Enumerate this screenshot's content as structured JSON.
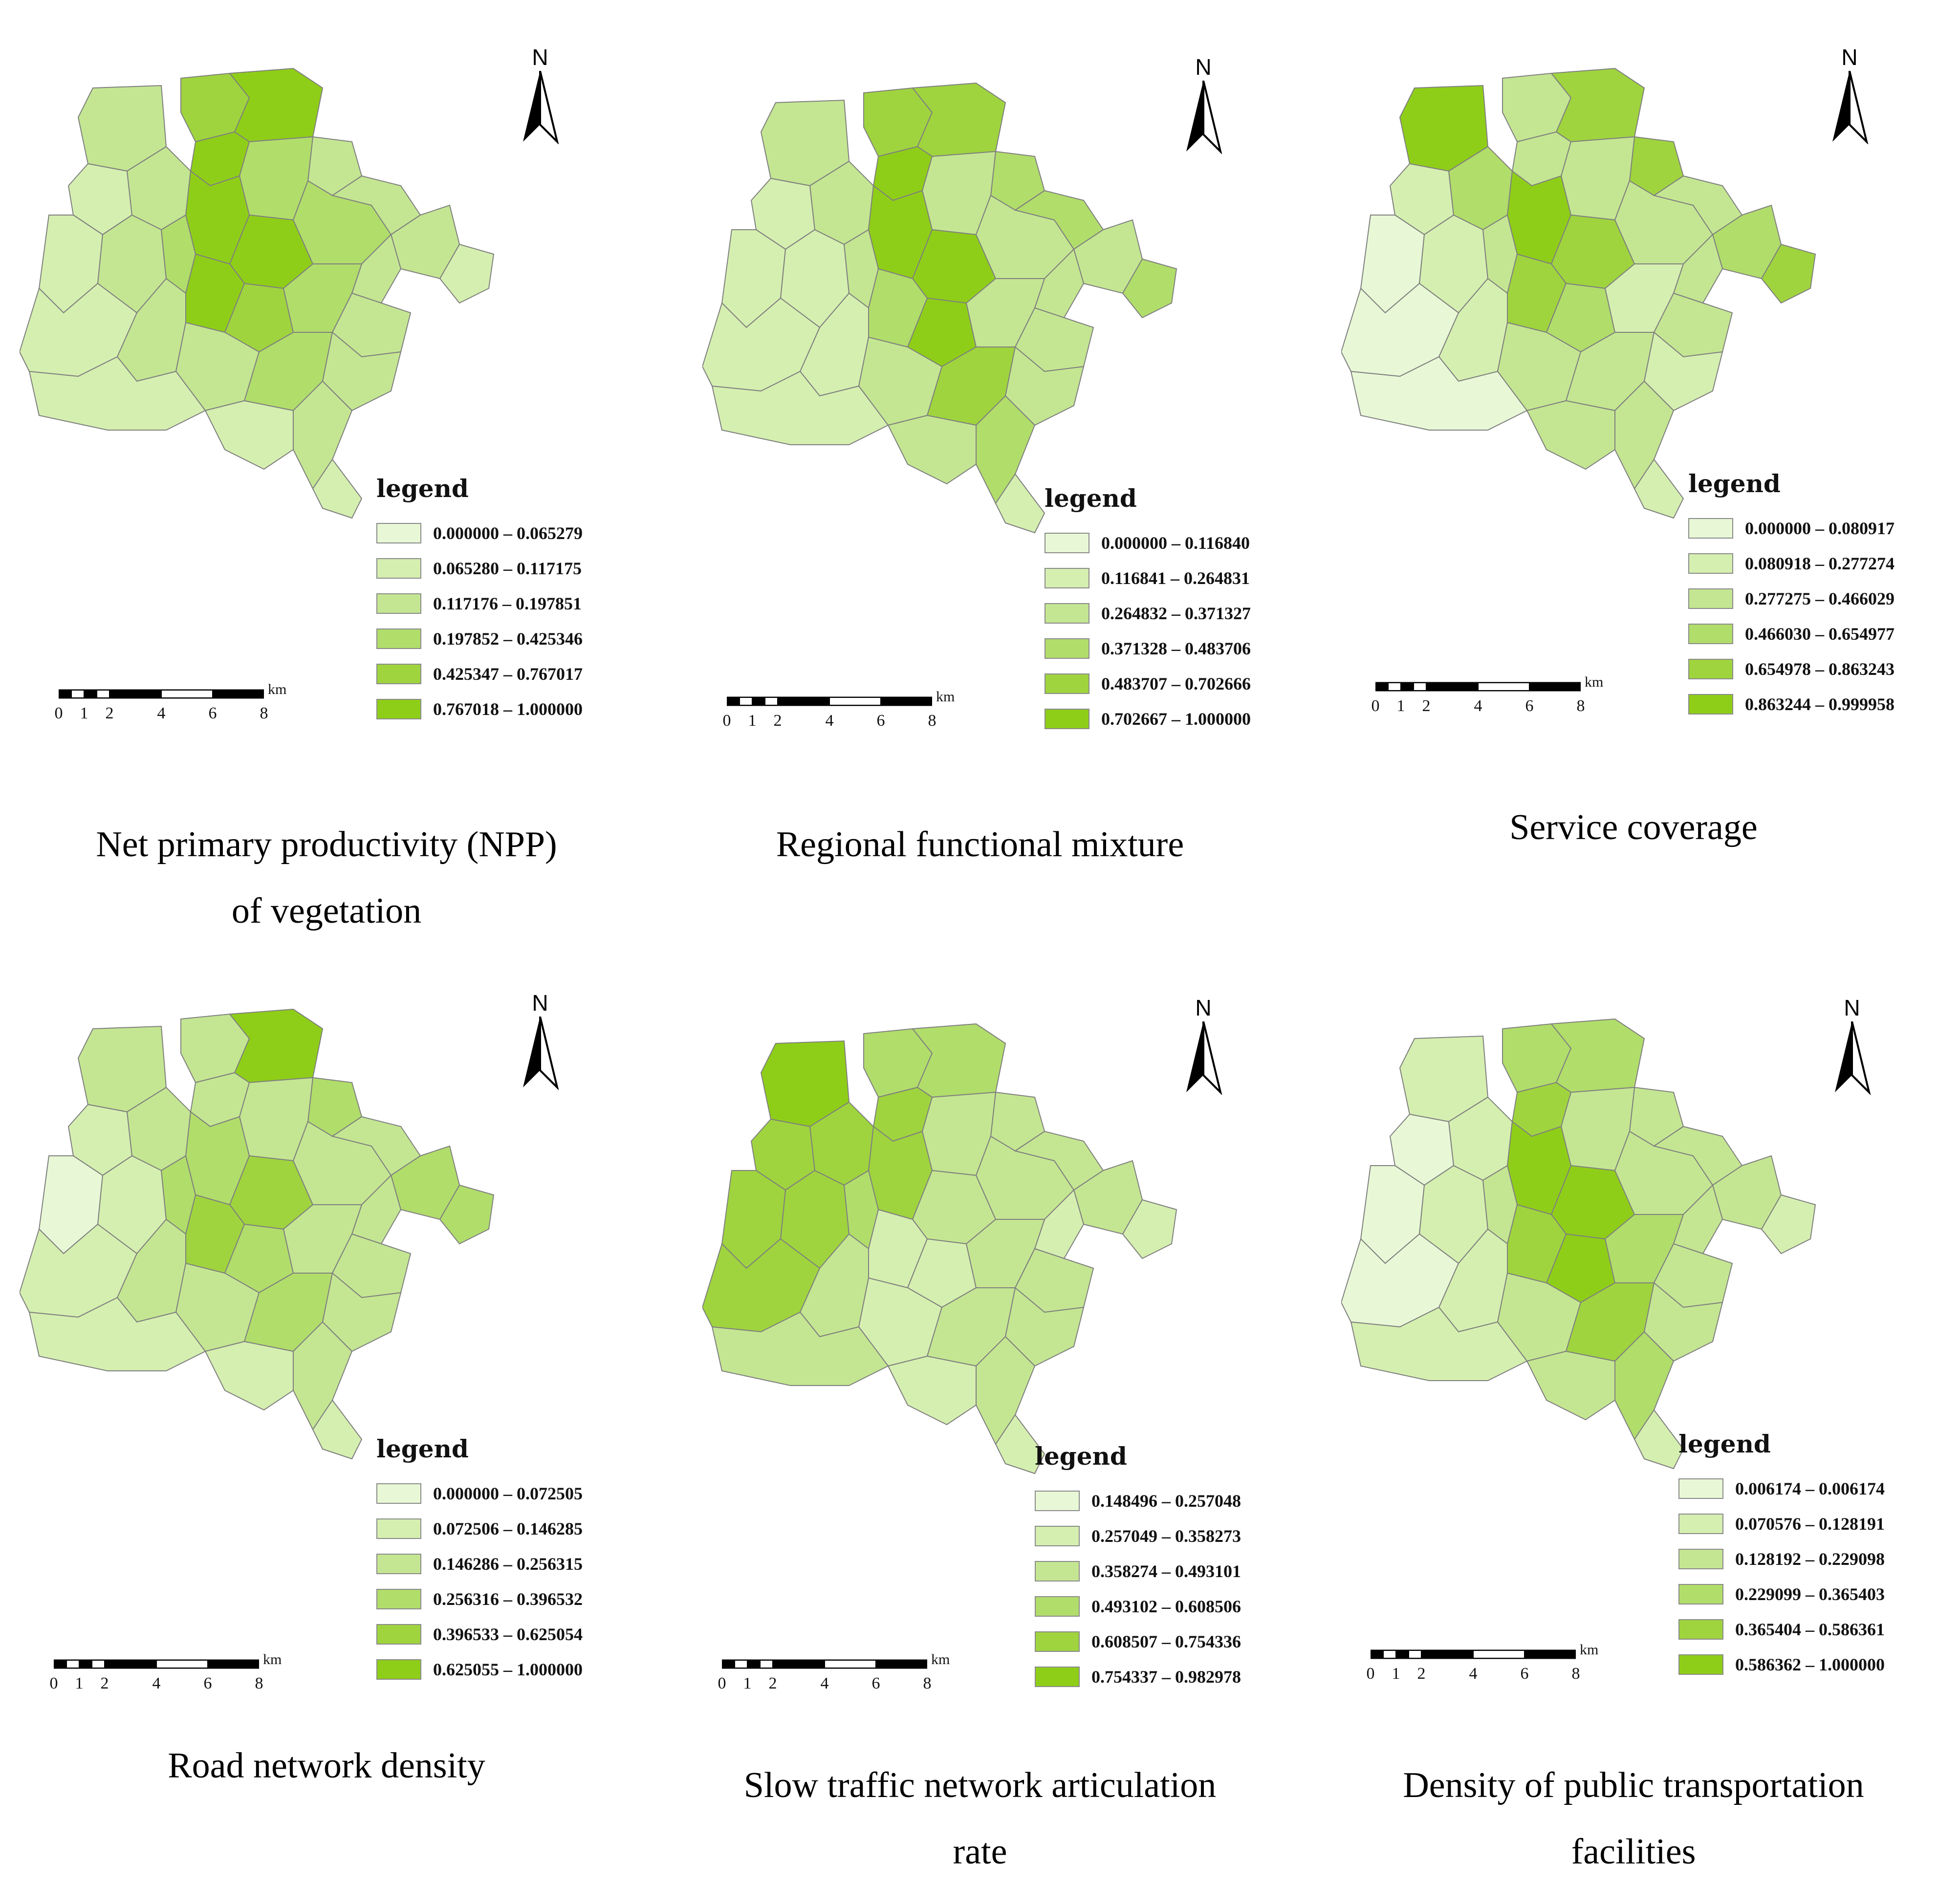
{
  "common": {
    "north_label": "N",
    "legend_title": "legend",
    "scale_unit": "km",
    "scale_ticks": [
      "0",
      "1",
      "2",
      "4",
      "6",
      "8"
    ],
    "class_colors": [
      "#e8f8d6",
      "#d5efb0",
      "#c4e692",
      "#b1dd6b",
      "#9fd43e",
      "#8fce18"
    ],
    "boundary_color": "#7f7f7f"
  },
  "panels": [
    {
      "caption_line1": "Net primary productivity (NPP)",
      "caption_line2": "of vegetation",
      "legend": [
        "0.000000 – 0.065279",
        "0.065280 – 0.117175",
        "0.117176 – 0.197851",
        "0.197852 – 0.425346",
        "0.425347 – 0.767017",
        "0.767018 – 1.000000"
      ]
    },
    {
      "caption_line1": "Regional functional mixture",
      "caption_line2": "",
      "legend": [
        "0.000000 – 0.116840",
        "0.116841 – 0.264831",
        "0.264832 – 0.371327",
        "0.371328 – 0.483706",
        "0.483707 – 0.702666",
        "0.702667 – 1.000000"
      ]
    },
    {
      "caption_line1": "Service coverage",
      "caption_line2": "",
      "legend": [
        "0.000000 – 0.080917",
        "0.080918 – 0.277274",
        "0.277275 – 0.466029",
        "0.466030 – 0.654977",
        "0.654978 – 0.863243",
        "0.863244 – 0.999958"
      ]
    },
    {
      "caption_line1": "Road network density",
      "caption_line2": "",
      "legend": [
        "0.000000 – 0.072505",
        "0.072506 – 0.146285",
        "0.146286 – 0.256315",
        "0.256316 – 0.396532",
        "0.396533 – 0.625054",
        "0.625055 – 1.000000"
      ]
    },
    {
      "caption_line1": "Slow traffic network articulation",
      "caption_line2": "rate",
      "legend": [
        "0.148496 – 0.257048",
        "0.257049 – 0.358273",
        "0.358274 – 0.493101",
        "0.493102 – 0.608506",
        "0.608507 – 0.754336",
        "0.754337 – 0.982978"
      ]
    },
    {
      "caption_line1": "Density of public transportation",
      "caption_line2": "facilities",
      "legend": [
        "0.006174 – 0.006174",
        "0.070576 – 0.128191",
        "0.128192 – 0.229098",
        "0.229099 – 0.365403",
        "0.365404 – 0.586361",
        "0.586362 – 1.000000"
      ]
    }
  ]
}
